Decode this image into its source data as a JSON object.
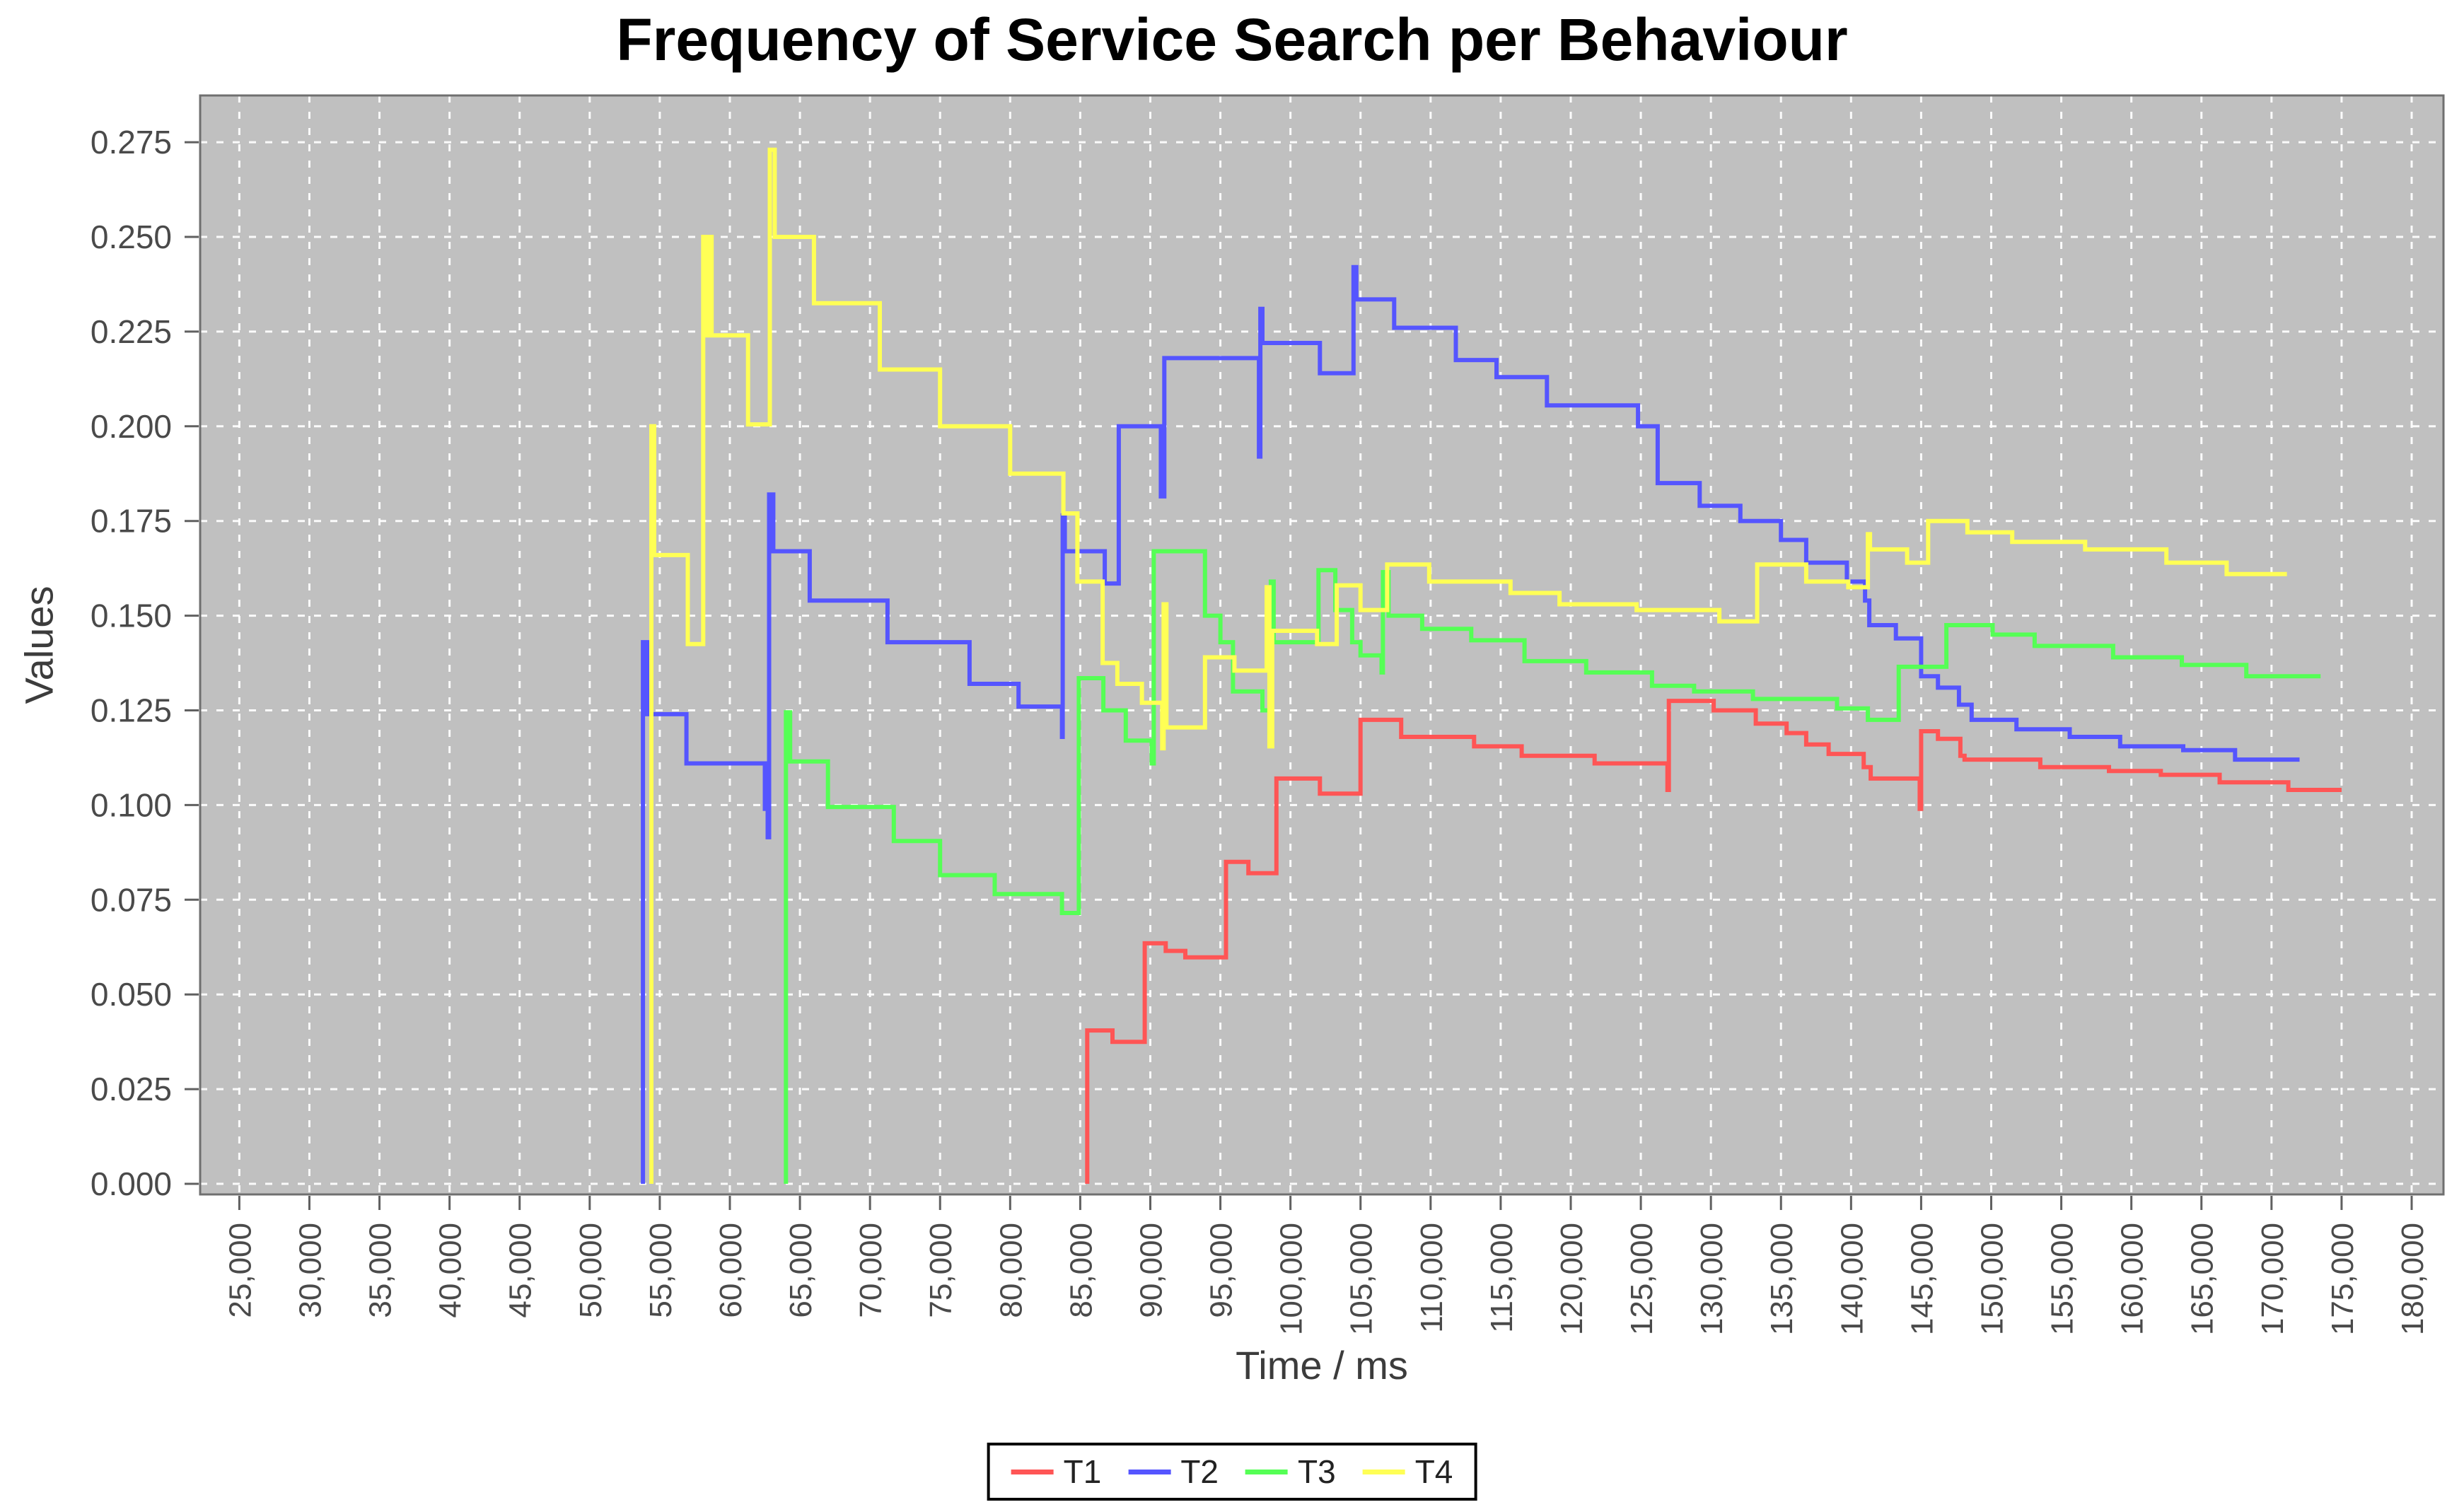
{
  "title": "Frequency of Service Search per Behaviour",
  "colors": {
    "plot_background": "#c0c0c0",
    "grid": "#ffffff",
    "plot_border": "#6f6f6f",
    "tick_mark": "#606060",
    "tick_label": "#4a4a4a",
    "axis_title": "#3c3c3c",
    "title_text": "#000000",
    "legend_border": "#000000",
    "series_t1": "#ff5555",
    "series_t2": "#5555ff",
    "series_t3": "#55ff55",
    "series_t4": "#ffff55"
  },
  "chart_data": {
    "type": "line",
    "step_style": "step-after",
    "title": "Frequency of Service Search per Behaviour",
    "xlabel": "Time / ms",
    "ylabel": "Values",
    "xlim": [
      21900,
      182400
    ],
    "ylim": [
      0.0,
      0.275
    ],
    "grid": "on",
    "legend_position": "bottom",
    "x_ticks": [
      {
        "v": 25000,
        "label": "25,000"
      },
      {
        "v": 30000,
        "label": "30,000"
      },
      {
        "v": 35000,
        "label": "35,000"
      },
      {
        "v": 40000,
        "label": "40,000"
      },
      {
        "v": 45000,
        "label": "45,000"
      },
      {
        "v": 50000,
        "label": "50,000"
      },
      {
        "v": 55000,
        "label": "55,000"
      },
      {
        "v": 60000,
        "label": "60,000"
      },
      {
        "v": 65000,
        "label": "65,000"
      },
      {
        "v": 70000,
        "label": "70,000"
      },
      {
        "v": 75000,
        "label": "75,000"
      },
      {
        "v": 80000,
        "label": "80,000"
      },
      {
        "v": 85000,
        "label": "85,000"
      },
      {
        "v": 90000,
        "label": "90,000"
      },
      {
        "v": 95000,
        "label": "95,000"
      },
      {
        "v": 100000,
        "label": "100,000"
      },
      {
        "v": 105000,
        "label": "105,000"
      },
      {
        "v": 110000,
        "label": "110,000"
      },
      {
        "v": 115000,
        "label": "115,000"
      },
      {
        "v": 120000,
        "label": "120,000"
      },
      {
        "v": 125000,
        "label": "125,000"
      },
      {
        "v": 130000,
        "label": "130,000"
      },
      {
        "v": 135000,
        "label": "135,000"
      },
      {
        "v": 140000,
        "label": "140,000"
      },
      {
        "v": 145000,
        "label": "145,000"
      },
      {
        "v": 150000,
        "label": "150,000"
      },
      {
        "v": 155000,
        "label": "155,000"
      },
      {
        "v": 160000,
        "label": "160,000"
      },
      {
        "v": 165000,
        "label": "165,000"
      },
      {
        "v": 170000,
        "label": "170,000"
      },
      {
        "v": 175000,
        "label": "175,000"
      },
      {
        "v": 180000,
        "label": "180,000"
      }
    ],
    "y_ticks": [
      {
        "v": 0.0,
        "label": "0.000"
      },
      {
        "v": 0.025,
        "label": "0.025"
      },
      {
        "v": 0.05,
        "label": "0.050"
      },
      {
        "v": 0.075,
        "label": "0.075"
      },
      {
        "v": 0.1,
        "label": "0.100"
      },
      {
        "v": 0.125,
        "label": "0.125"
      },
      {
        "v": 0.15,
        "label": "0.150"
      },
      {
        "v": 0.175,
        "label": "0.175"
      },
      {
        "v": 0.2,
        "label": "0.200"
      },
      {
        "v": 0.225,
        "label": "0.225"
      },
      {
        "v": 0.25,
        "label": "0.250"
      },
      {
        "v": 0.275,
        "label": "0.275"
      }
    ],
    "series": [
      {
        "name": "T1",
        "color": "#ff5555",
        "points": [
          [
            85500,
            0.0
          ],
          [
            85500,
            0.0405
          ],
          [
            87300,
            0.0375
          ],
          [
            89600,
            0.0635
          ],
          [
            91100,
            0.0615
          ],
          [
            92500,
            0.0598
          ],
          [
            95400,
            0.085
          ],
          [
            97000,
            0.082
          ],
          [
            99000,
            0.107
          ],
          [
            102100,
            0.103
          ],
          [
            105000,
            0.1225
          ],
          [
            107900,
            0.118
          ],
          [
            113100,
            0.1155
          ],
          [
            116500,
            0.113
          ],
          [
            121700,
            0.111
          ],
          [
            126900,
            0.104
          ],
          [
            127000,
            0.1275
          ],
          [
            130200,
            0.125
          ],
          [
            133200,
            0.1215
          ],
          [
            135400,
            0.119
          ],
          [
            136800,
            0.116
          ],
          [
            138400,
            0.1135
          ],
          [
            140900,
            0.11
          ],
          [
            141400,
            0.107
          ],
          [
            144900,
            0.099
          ],
          [
            145000,
            0.1195
          ],
          [
            146200,
            0.1175
          ],
          [
            147800,
            0.113
          ],
          [
            148100,
            0.112
          ],
          [
            153500,
            0.11
          ],
          [
            158400,
            0.109
          ],
          [
            162100,
            0.108
          ],
          [
            166300,
            0.106
          ],
          [
            171200,
            0.104
          ],
          [
            175000,
            0.104
          ]
        ]
      },
      {
        "name": "T2",
        "color": "#5555ff",
        "points": [
          [
            53800,
            0.0
          ],
          [
            53800,
            0.143
          ],
          [
            54100,
            0.124
          ],
          [
            56900,
            0.111
          ],
          [
            62500,
            0.099
          ],
          [
            62700,
            0.0915
          ],
          [
            62800,
            0.182
          ],
          [
            63100,
            0.167
          ],
          [
            65700,
            0.154
          ],
          [
            71250,
            0.143
          ],
          [
            77100,
            0.132
          ],
          [
            80600,
            0.126
          ],
          [
            83700,
            0.118
          ],
          [
            83750,
            0.1765
          ],
          [
            83900,
            0.167
          ],
          [
            86750,
            0.1585
          ],
          [
            87750,
            0.2
          ],
          [
            90750,
            0.1815
          ],
          [
            91000,
            0.218
          ],
          [
            97750,
            0.192
          ],
          [
            97850,
            0.231
          ],
          [
            98000,
            0.222
          ],
          [
            102100,
            0.214
          ],
          [
            104500,
            0.242
          ],
          [
            104700,
            0.2335
          ],
          [
            107400,
            0.226
          ],
          [
            111800,
            0.2175
          ],
          [
            114700,
            0.213
          ],
          [
            118300,
            0.2055
          ],
          [
            124800,
            0.2
          ],
          [
            126200,
            0.185
          ],
          [
            129200,
            0.179
          ],
          [
            132100,
            0.175
          ],
          [
            135000,
            0.17
          ],
          [
            136800,
            0.164
          ],
          [
            139700,
            0.159
          ],
          [
            141000,
            0.154
          ],
          [
            141300,
            0.1475
          ],
          [
            143200,
            0.144
          ],
          [
            145000,
            0.134
          ],
          [
            146200,
            0.131
          ],
          [
            147700,
            0.1265
          ],
          [
            148600,
            0.1225
          ],
          [
            151800,
            0.12
          ],
          [
            155600,
            0.118
          ],
          [
            159200,
            0.1155
          ],
          [
            163700,
            0.1145
          ],
          [
            167400,
            0.112
          ],
          [
            172000,
            0.112
          ]
        ]
      },
      {
        "name": "T3",
        "color": "#55ff55",
        "points": [
          [
            64000,
            0.0
          ],
          [
            64000,
            0.1245
          ],
          [
            64300,
            0.1115
          ],
          [
            67000,
            0.0995
          ],
          [
            71700,
            0.0905
          ],
          [
            75000,
            0.0815
          ],
          [
            78900,
            0.0765
          ],
          [
            83700,
            0.0715
          ],
          [
            84900,
            0.1335
          ],
          [
            86650,
            0.125
          ],
          [
            88250,
            0.117
          ],
          [
            90100,
            0.111
          ],
          [
            90250,
            0.167
          ],
          [
            93900,
            0.15
          ],
          [
            95000,
            0.143
          ],
          [
            95900,
            0.13
          ],
          [
            98000,
            0.125
          ],
          [
            98500,
            0.119
          ],
          [
            98600,
            0.159
          ],
          [
            98800,
            0.143
          ],
          [
            102000,
            0.162
          ],
          [
            103200,
            0.1515
          ],
          [
            104400,
            0.143
          ],
          [
            105000,
            0.1395
          ],
          [
            106500,
            0.135
          ],
          [
            106600,
            0.1615
          ],
          [
            107000,
            0.15
          ],
          [
            109400,
            0.1465
          ],
          [
            112900,
            0.1435
          ],
          [
            116700,
            0.138
          ],
          [
            121100,
            0.135
          ],
          [
            125800,
            0.1315
          ],
          [
            128800,
            0.13
          ],
          [
            133000,
            0.128
          ],
          [
            139000,
            0.1255
          ],
          [
            141200,
            0.1225
          ],
          [
            143400,
            0.1365
          ],
          [
            146800,
            0.1475
          ],
          [
            150100,
            0.145
          ],
          [
            153100,
            0.142
          ],
          [
            158700,
            0.139
          ],
          [
            163600,
            0.137
          ],
          [
            168200,
            0.134
          ],
          [
            173500,
            0.134
          ]
        ]
      },
      {
        "name": "T4",
        "color": "#ffff55",
        "points": [
          [
            54400,
            0.0
          ],
          [
            54400,
            0.2
          ],
          [
            54600,
            0.166
          ],
          [
            57000,
            0.1425
          ],
          [
            58100,
            0.25
          ],
          [
            58350,
            0.224
          ],
          [
            58550,
            0.25
          ],
          [
            58700,
            0.224
          ],
          [
            61300,
            0.2005
          ],
          [
            62850,
            0.273
          ],
          [
            63200,
            0.25
          ],
          [
            66000,
            0.2325
          ],
          [
            70700,
            0.215
          ],
          [
            75000,
            0.2
          ],
          [
            80000,
            0.1875
          ],
          [
            83800,
            0.177
          ],
          [
            84800,
            0.159
          ],
          [
            86600,
            0.1375
          ],
          [
            87650,
            0.132
          ],
          [
            89400,
            0.127
          ],
          [
            90850,
            0.115
          ],
          [
            90950,
            0.153
          ],
          [
            91150,
            0.1205
          ],
          [
            93900,
            0.139
          ],
          [
            96000,
            0.1355
          ],
          [
            98300,
            0.1575
          ],
          [
            98500,
            0.1155
          ],
          [
            98700,
            0.146
          ],
          [
            101900,
            0.1425
          ],
          [
            103300,
            0.158
          ],
          [
            105000,
            0.1515
          ],
          [
            106900,
            0.1635
          ],
          [
            109900,
            0.159
          ],
          [
            115700,
            0.156
          ],
          [
            119200,
            0.153
          ],
          [
            124700,
            0.1515
          ],
          [
            130600,
            0.1485
          ],
          [
            133300,
            0.1635
          ],
          [
            136800,
            0.159
          ],
          [
            139800,
            0.1575
          ],
          [
            141200,
            0.1715
          ],
          [
            141350,
            0.1675
          ],
          [
            144000,
            0.164
          ],
          [
            145500,
            0.175
          ],
          [
            148300,
            0.172
          ],
          [
            151500,
            0.1695
          ],
          [
            156700,
            0.1675
          ],
          [
            162500,
            0.164
          ],
          [
            166800,
            0.161
          ],
          [
            171100,
            0.161
          ]
        ]
      }
    ]
  }
}
